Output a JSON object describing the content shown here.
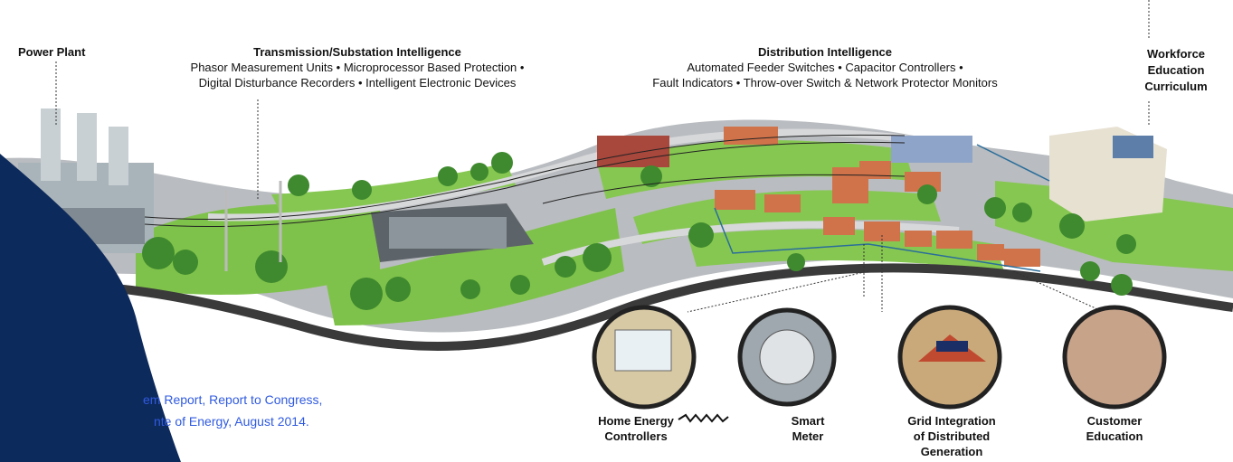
{
  "power_plant": "Power Plant",
  "transmission": {
    "title": "Transmission/Substation Intelligence",
    "lines": [
      "Phasor Measurement Units • Microprocessor Based Protection •",
      "Digital Disturbance Recorders • Intelligent Electronic Devices"
    ]
  },
  "distribution": {
    "title": "Distribution Intelligence",
    "lines": [
      "Automated Feeder Switches • Capacitor Controllers •",
      "Fault Indicators • Throw-over Switch & Network Protector Monitors"
    ]
  },
  "workforce": [
    "Workforce",
    "Education",
    "Curriculum"
  ],
  "callouts": [
    {
      "lines": [
        "Home Energy",
        "Controllers"
      ]
    },
    {
      "lines": [
        "Smart",
        "Meter"
      ]
    },
    {
      "lines": [
        "Grid Integration",
        "of Distributed",
        "Generation"
      ]
    },
    {
      "lines": [
        "Customer",
        "Education"
      ]
    }
  ],
  "citation": [
    "em Report, Report to Congress,",
    "nte of Energy, August 2014."
  ]
}
